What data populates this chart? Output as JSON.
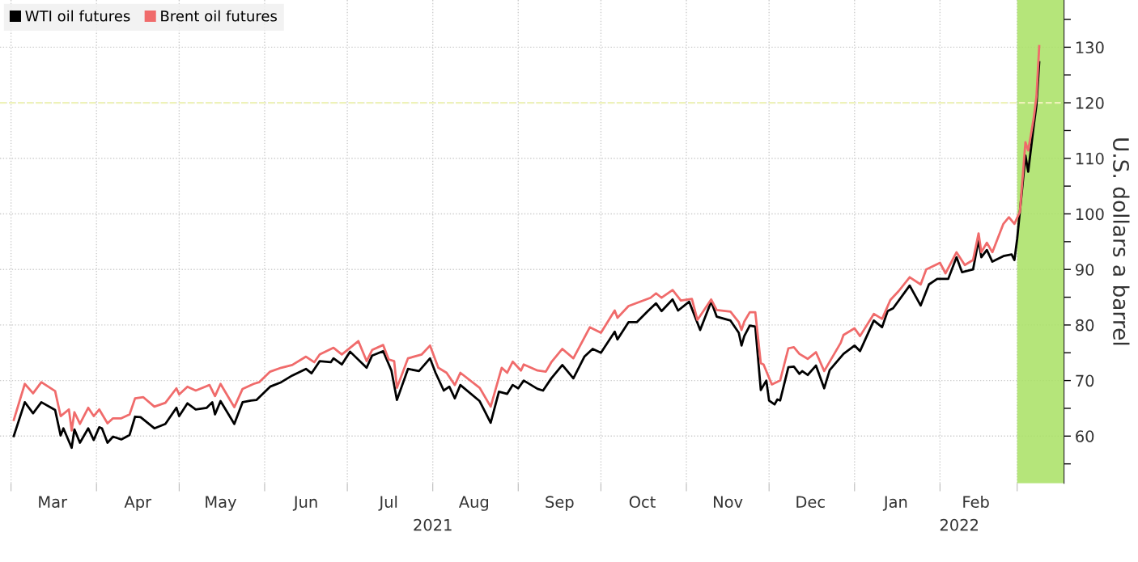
{
  "chart_data": {
    "type": "line",
    "ylabel": "U.S. dollars a barrel",
    "series": [
      {
        "name": "WTI oil futures",
        "color": "#000000",
        "x": [
          "2021-03-02",
          "2021-03-06",
          "2021-03-09",
          "2021-03-12",
          "2021-03-17",
          "2021-03-19",
          "2021-03-20",
          "2021-03-23",
          "2021-03-24",
          "2021-03-26",
          "2021-03-29",
          "2021-03-31",
          "2021-04-02",
          "2021-04-03",
          "2021-04-05",
          "2021-04-07",
          "2021-04-10",
          "2021-04-13",
          "2021-04-15",
          "2021-04-17",
          "2021-04-22",
          "2021-04-26",
          "2021-04-30",
          "2021-05-01",
          "2021-05-04",
          "2021-05-07",
          "2021-05-11",
          "2021-05-13",
          "2021-05-14",
          "2021-05-16",
          "2021-05-21",
          "2021-05-24",
          "2021-05-27",
          "2021-05-29",
          "2021-06-03",
          "2021-06-07",
          "2021-06-11",
          "2021-06-16",
          "2021-06-18",
          "2021-06-21",
          "2021-06-25",
          "2021-06-26",
          "2021-06-29",
          "2021-07-02",
          "2021-07-08",
          "2021-07-10",
          "2021-07-14",
          "2021-07-17",
          "2021-07-19",
          "2021-07-23",
          "2021-07-27",
          "2021-07-31",
          "2021-08-02",
          "2021-08-05",
          "2021-08-07",
          "2021-08-09",
          "2021-08-11",
          "2021-08-18",
          "2021-08-22",
          "2021-08-25",
          "2021-08-28",
          "2021-08-30",
          "2021-09-01",
          "2021-09-03",
          "2021-09-08",
          "2021-09-10",
          "2021-09-13",
          "2021-09-17",
          "2021-09-21",
          "2021-09-25",
          "2021-09-28",
          "2021-10-01",
          "2021-10-06",
          "2021-10-07",
          "2021-10-11",
          "2021-10-14",
          "2021-10-18",
          "2021-10-21",
          "2021-10-23",
          "2021-10-27",
          "2021-10-29",
          "2021-11-02",
          "2021-11-06",
          "2021-11-10",
          "2021-11-12",
          "2021-11-17",
          "2021-11-20",
          "2021-11-21",
          "2021-11-22",
          "2021-11-24",
          "2021-11-26",
          "2021-11-28",
          "2021-11-30",
          "2021-12-01",
          "2021-12-03",
          "2021-12-04",
          "2021-12-05",
          "2021-12-08",
          "2021-12-10",
          "2021-12-12",
          "2021-12-13",
          "2021-12-15",
          "2021-12-18",
          "2021-12-21",
          "2021-12-23",
          "2021-12-28",
          "2022-01-01",
          "2022-01-03",
          "2022-01-08",
          "2022-01-11",
          "2022-01-13",
          "2022-01-15",
          "2022-01-21",
          "2022-01-25",
          "2022-01-28",
          "2022-01-31",
          "2022-02-04",
          "2022-02-07",
          "2022-02-09",
          "2022-02-13",
          "2022-02-15",
          "2022-02-16",
          "2022-02-18",
          "2022-02-20",
          "2022-02-24",
          "2022-02-27",
          "2022-02-28",
          "2022-03-01",
          "2022-03-04",
          "2022-03-05",
          "2022-03-07",
          "2022-03-08",
          "2022-03-09"
        ],
        "values": [
          60.0,
          66.1,
          64.1,
          66.1,
          64.7,
          60.1,
          61.4,
          57.9,
          61.2,
          58.8,
          61.4,
          59.3,
          61.6,
          61.4,
          58.8,
          59.9,
          59.4,
          60.2,
          63.5,
          63.4,
          61.4,
          62.2,
          65.1,
          63.6,
          65.9,
          64.8,
          65.1,
          66.1,
          63.9,
          66.3,
          62.2,
          66.1,
          66.4,
          66.5,
          68.9,
          69.7,
          70.9,
          72.1,
          71.3,
          73.5,
          73.3,
          74.0,
          72.9,
          75.2,
          72.3,
          74.5,
          75.3,
          71.8,
          66.5,
          72.1,
          71.7,
          74.0,
          71.4,
          68.2,
          68.9,
          66.8,
          69.2,
          66.3,
          62.4,
          68.0,
          67.6,
          69.2,
          68.6,
          70.0,
          68.5,
          68.2,
          70.4,
          72.8,
          70.4,
          74.3,
          75.7,
          75.0,
          78.8,
          77.4,
          80.5,
          80.5,
          82.5,
          83.9,
          82.5,
          84.6,
          82.6,
          84.2,
          79.1,
          84.2,
          81.5,
          80.8,
          78.6,
          76.3,
          78.0,
          79.9,
          79.7,
          68.3,
          70.0,
          66.4,
          65.7,
          66.6,
          66.4,
          72.4,
          72.5,
          71.2,
          71.7,
          71.0,
          72.7,
          68.6,
          71.9,
          74.8,
          76.3,
          75.3,
          80.8,
          79.6,
          82.5,
          83.0,
          87.1,
          83.5,
          87.3,
          88.3,
          88.3,
          92.2,
          89.5,
          90.0,
          95.3,
          92.2,
          93.5,
          91.4,
          92.4,
          92.7,
          91.7,
          95.5,
          110.5,
          107.6,
          115.8,
          119.6,
          127.3
        ]
      },
      {
        "name": "Brent oil futures",
        "color": "#f06b6b",
        "x": [
          "2021-03-02",
          "2021-03-06",
          "2021-03-09",
          "2021-03-12",
          "2021-03-17",
          "2021-03-19",
          "2021-03-22",
          "2021-03-23",
          "2021-03-24",
          "2021-03-26",
          "2021-03-29",
          "2021-03-31",
          "2021-04-02",
          "2021-04-05",
          "2021-04-07",
          "2021-04-10",
          "2021-04-13",
          "2021-04-15",
          "2021-04-18",
          "2021-04-22",
          "2021-04-26",
          "2021-04-30",
          "2021-05-01",
          "2021-05-04",
          "2021-05-07",
          "2021-05-12",
          "2021-05-14",
          "2021-05-16",
          "2021-05-21",
          "2021-05-24",
          "2021-05-28",
          "2021-05-30",
          "2021-06-03",
          "2021-06-07",
          "2021-06-11",
          "2021-06-16",
          "2021-06-19",
          "2021-06-21",
          "2021-06-26",
          "2021-06-29",
          "2021-07-05",
          "2021-07-08",
          "2021-07-10",
          "2021-07-14",
          "2021-07-16",
          "2021-07-18",
          "2021-07-19",
          "2021-07-23",
          "2021-07-28",
          "2021-07-31",
          "2021-08-03",
          "2021-08-06",
          "2021-08-09",
          "2021-08-11",
          "2021-08-18",
          "2021-08-22",
          "2021-08-26",
          "2021-08-28",
          "2021-08-30",
          "2021-09-02",
          "2021-09-03",
          "2021-09-08",
          "2021-09-11",
          "2021-09-13",
          "2021-09-17",
          "2021-09-21",
          "2021-09-27",
          "2021-10-01",
          "2021-10-06",
          "2021-10-07",
          "2021-10-11",
          "2021-10-19",
          "2021-10-21",
          "2021-10-23",
          "2021-10-27",
          "2021-10-30",
          "2021-11-03",
          "2021-11-05",
          "2021-11-10",
          "2021-11-12",
          "2021-11-17",
          "2021-11-20",
          "2021-11-21",
          "2021-11-22",
          "2021-11-24",
          "2021-11-26",
          "2021-11-28",
          "2021-11-29",
          "2021-12-02",
          "2021-12-05",
          "2021-12-08",
          "2021-12-10",
          "2021-12-12",
          "2021-12-15",
          "2021-12-18",
          "2021-12-21",
          "2021-12-27",
          "2021-12-28",
          "2022-01-01",
          "2022-01-03",
          "2022-01-08",
          "2022-01-11",
          "2022-01-14",
          "2022-01-17",
          "2022-01-21",
          "2022-01-25",
          "2022-01-27",
          "2022-02-01",
          "2022-02-03",
          "2022-02-07",
          "2022-02-10",
          "2022-02-13",
          "2022-02-15",
          "2022-02-16",
          "2022-02-18",
          "2022-02-20",
          "2022-02-24",
          "2022-02-26",
          "2022-02-28",
          "2022-03-02",
          "2022-03-04",
          "2022-03-05",
          "2022-03-07",
          "2022-03-08",
          "2022-03-09"
        ],
        "values": [
          62.9,
          69.4,
          67.7,
          69.7,
          68.1,
          63.6,
          64.8,
          61.0,
          64.3,
          62.2,
          65.1,
          63.6,
          64.8,
          62.3,
          63.2,
          63.2,
          63.9,
          66.8,
          67.0,
          65.3,
          66.0,
          68.6,
          67.5,
          68.9,
          68.2,
          69.2,
          67.2,
          69.4,
          65.2,
          68.5,
          69.4,
          69.7,
          71.6,
          72.3,
          72.8,
          74.3,
          73.3,
          74.7,
          75.9,
          74.7,
          77.1,
          73.5,
          75.5,
          76.4,
          73.8,
          73.5,
          68.7,
          74.0,
          74.7,
          76.3,
          72.3,
          71.4,
          69.2,
          71.4,
          68.7,
          65.3,
          72.3,
          71.4,
          73.4,
          71.8,
          72.9,
          71.8,
          71.6,
          73.3,
          75.7,
          74.0,
          79.6,
          78.6,
          82.6,
          81.3,
          83.4,
          84.9,
          85.7,
          84.9,
          86.3,
          84.4,
          84.7,
          80.9,
          84.6,
          82.7,
          82.4,
          80.5,
          79.1,
          80.6,
          82.3,
          82.3,
          73.1,
          72.9,
          69.3,
          70.0,
          75.8,
          76.0,
          74.8,
          73.9,
          75.1,
          71.7,
          76.8,
          78.2,
          79.4,
          78.0,
          82.0,
          81.1,
          84.5,
          86.1,
          88.6,
          87.3,
          90.0,
          91.2,
          89.3,
          93.1,
          90.8,
          91.7,
          96.5,
          93.1,
          94.8,
          93.1,
          98.2,
          99.4,
          98.2,
          100.4,
          112.9,
          111.4,
          117.2,
          121.1,
          130.2
        ]
      }
    ],
    "xlim": [
      "2021-02-25",
      "2022-03-18"
    ],
    "xticks": [
      {
        "value": "2021-03-01",
        "label": null
      },
      {
        "value": "2021-03-16",
        "label": "Mar"
      },
      {
        "value": "2021-04-01",
        "label": null
      },
      {
        "value": "2021-04-16",
        "label": "Apr"
      },
      {
        "value": "2021-05-01",
        "label": null
      },
      {
        "value": "2021-05-16",
        "label": "May"
      },
      {
        "value": "2021-06-01",
        "label": null
      },
      {
        "value": "2021-06-16",
        "label": "Jun"
      },
      {
        "value": "2021-07-01",
        "label": null
      },
      {
        "value": "2021-07-16",
        "label": "Jul"
      },
      {
        "value": "2021-08-01",
        "label": null
      },
      {
        "value": "2021-08-16",
        "label": "Aug"
      },
      {
        "value": "2021-09-01",
        "label": null
      },
      {
        "value": "2021-09-16",
        "label": "Sep"
      },
      {
        "value": "2021-10-01",
        "label": null
      },
      {
        "value": "2021-10-16",
        "label": "Oct"
      },
      {
        "value": "2021-11-01",
        "label": null
      },
      {
        "value": "2021-11-16",
        "label": "Nov"
      },
      {
        "value": "2021-12-01",
        "label": null
      },
      {
        "value": "2021-12-16",
        "label": "Dec"
      },
      {
        "value": "2022-01-01",
        "label": null
      },
      {
        "value": "2022-01-16",
        "label": "Jan"
      },
      {
        "value": "2022-02-01",
        "label": null
      },
      {
        "value": "2022-02-14",
        "label": "Feb"
      },
      {
        "value": "2022-03-01",
        "label": null
      }
    ],
    "x2lim": [
      "2021-02-25",
      "2022-03-18"
    ],
    "x2ticks": [
      {
        "value": "2021-08-01",
        "label": "2021"
      },
      {
        "value": "2022-02-08",
        "label": "2022"
      }
    ],
    "ylim": [
      51.5,
      138.5
    ],
    "yticks": [
      {
        "value": 55,
        "label": null
      },
      60,
      {
        "value": 65,
        "label": null
      },
      70,
      {
        "value": 75,
        "label": null
      },
      80,
      {
        "value": 85,
        "label": null
      },
      90,
      {
        "value": 95,
        "label": null
      },
      100,
      {
        "value": 105,
        "label": null
      },
      110,
      {
        "value": 115,
        "label": null
      },
      120,
      {
        "value": 125,
        "label": null
      },
      130,
      {
        "value": 135,
        "label": null
      }
    ],
    "ref_lines": [
      {
        "axis": "y",
        "value": 120,
        "label": null,
        "color": "#eef2b8",
        "line_style": "dashed"
      }
    ],
    "bands": [
      {
        "axis": "x",
        "from": "2022-03-01",
        "to": "2022-03-18",
        "label": null,
        "color": "#a8e063"
      }
    ],
    "grid": true,
    "legend": "top left",
    "line_style": "solid",
    "marker": "none"
  }
}
